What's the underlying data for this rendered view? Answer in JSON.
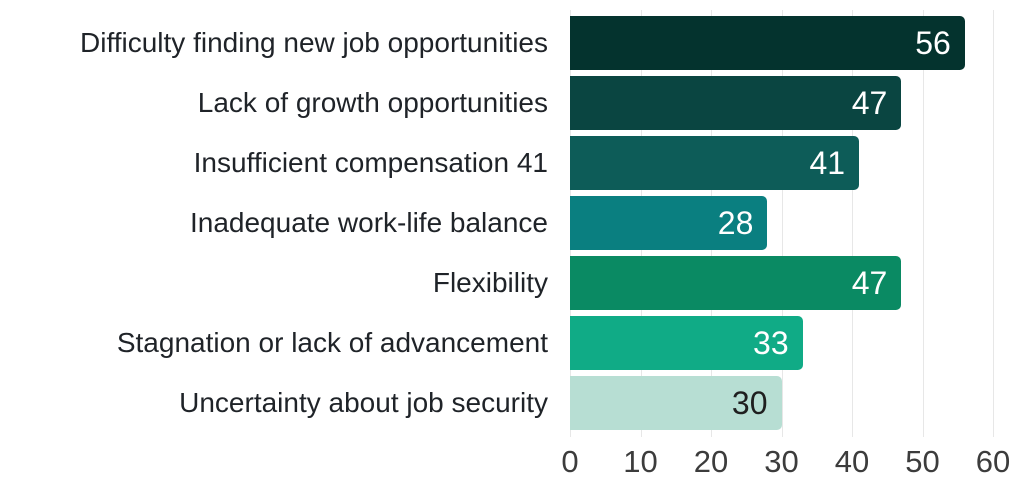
{
  "chart_data": {
    "type": "bar",
    "orientation": "horizontal",
    "title": "",
    "xlabel": "",
    "ylabel": "",
    "legend": "none",
    "categories": [
      "Difficulty finding new job opportunities",
      "Lack of growth opportunities",
      "Insufficient compensation 41",
      "Inadequate work-life balance",
      "Flexibility",
      "Stagnation or lack of advancement",
      "Uncertainty about job security"
    ],
    "values": [
      56,
      47,
      41,
      28,
      47,
      33,
      30
    ],
    "data_labels": [
      "56",
      "47",
      "41",
      "28",
      "47",
      "33",
      "30"
    ],
    "bar_colors": [
      "#04332E",
      "#0A4541",
      "#0D5C58",
      "#0A7F80",
      "#0A8A63",
      "#10AB86",
      "#B7DED3"
    ],
    "value_label_colors": [
      "#FFFFFF",
      "#FFFFFF",
      "#FFFFFF",
      "#FFFFFF",
      "#FFFFFF",
      "#FFFFFF",
      "#1F1F1F"
    ],
    "xlim": [
      0,
      60
    ],
    "x_ticks": [
      "0",
      "10",
      "20",
      "30",
      "40",
      "50",
      "60"
    ],
    "x_tick_values": [
      0,
      10,
      20,
      30,
      40,
      50,
      60
    ],
    "grid": "vertical",
    "data_label_position": "inside-end",
    "colors": {
      "background": "#FFFFFF",
      "gridline": "#E7E7E7",
      "axis_text": "#3C3C3C",
      "category_text": "#1F2328"
    }
  }
}
